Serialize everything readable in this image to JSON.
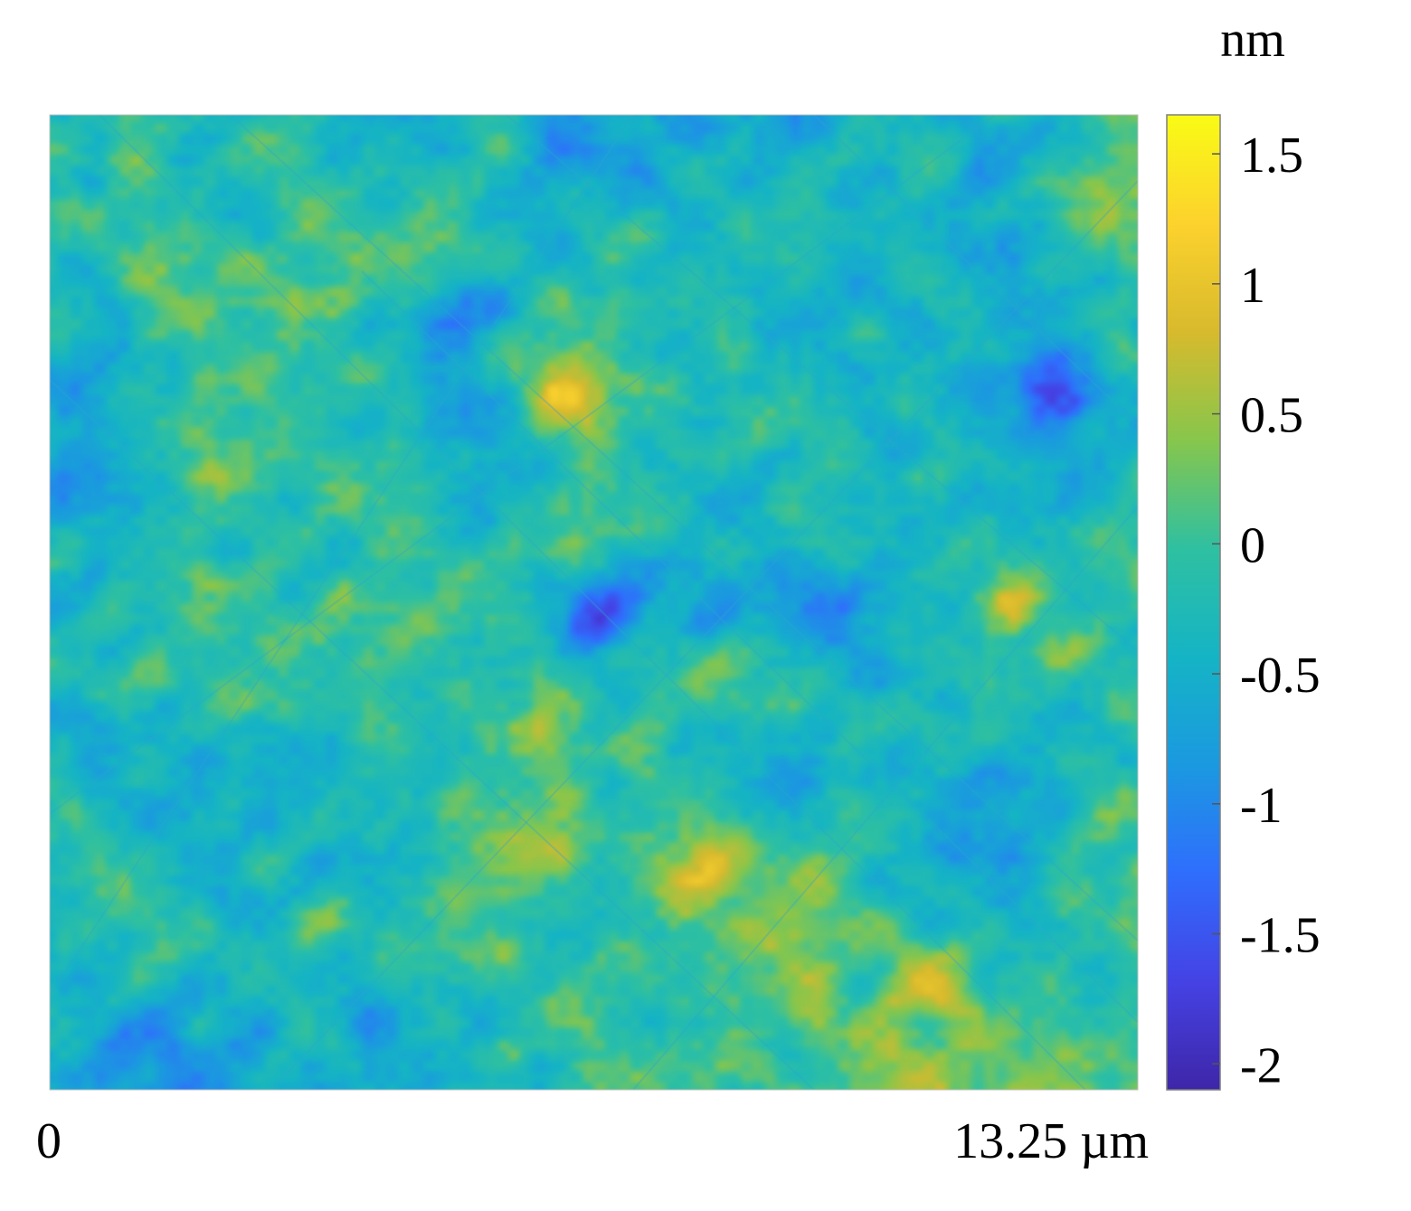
{
  "chart_data": {
    "type": "heatmap",
    "title": "",
    "colorbar": {
      "unit": "nm",
      "range": [
        -2.1,
        1.65
      ],
      "ticks": [
        1.5,
        1,
        0.5,
        0,
        -0.5,
        -1,
        -1.5,
        -2
      ],
      "tick_labels": [
        "1.5",
        "1",
        "0.5",
        "0",
        "-0.5",
        "-1",
        "-1.5",
        "-2"
      ],
      "colormap": "parula",
      "colormap_stops": [
        "#3e26a8",
        "#4542e4",
        "#2f6efd",
        "#1b99e0",
        "#15b4c5",
        "#2fc0a1",
        "#87c64c",
        "#d8ba2d",
        "#fcd22d",
        "#f9fb15"
      ]
    },
    "x_axis": {
      "range": [
        0,
        13.25
      ],
      "unit": "µm",
      "tick_labels": [
        "0",
        "13.25 µm"
      ]
    },
    "surface": {
      "description_values": "height map in nm, mostly between -1.5 and 1.2",
      "peaks": [
        {
          "x": 0.48,
          "y": 0.28,
          "value": 1.3
        },
        {
          "x": 0.88,
          "y": 0.5,
          "value": 1.2
        },
        {
          "x": 0.19,
          "y": 0.6,
          "value": 1.0
        },
        {
          "x": 0.6,
          "y": 0.76,
          "value": 0.9
        },
        {
          "x": 0.45,
          "y": 0.75,
          "value": 0.8
        },
        {
          "x": 0.81,
          "y": 0.88,
          "value": 0.8
        }
      ],
      "valleys": [
        {
          "x": 0.38,
          "y": 0.2,
          "value": -1.8
        },
        {
          "x": 0.5,
          "y": 0.5,
          "value": -1.6
        },
        {
          "x": 0.92,
          "y": 0.28,
          "value": -1.6
        },
        {
          "x": 0.68,
          "y": 0.68,
          "value": -1.3
        }
      ]
    }
  }
}
